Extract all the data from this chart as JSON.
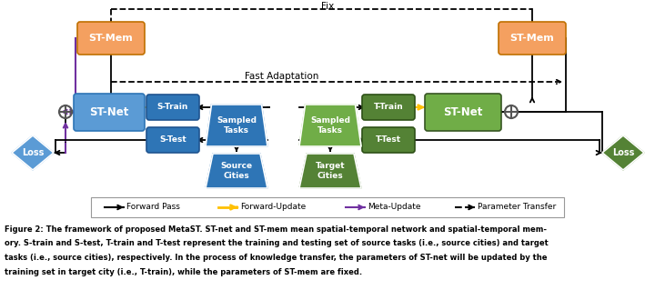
{
  "fig_width": 7.2,
  "fig_height": 3.19,
  "dpi": 100,
  "bg_color": "#ffffff",
  "orange_color": "#F4A060",
  "blue_net_color": "#5B9BD5",
  "blue_dark_color": "#2E75B6",
  "blue_box_color": "#4472C4",
  "green_net_color": "#70AD47",
  "green_box_color": "#548235",
  "green_dark_color": "#375623",
  "purple_color": "#7030A0",
  "orange_arrow_color": "#FFC000",
  "gray_color": "#7F7F7F",
  "caption_lines": [
    "Figure 2: The framework of proposed MetaST. ST-net and ST-mem mean spatial-temporal network and spatial-temporal mem-",
    "ory. S-train and S-test, T-train and T-test represent the training and testing set of source tasks (i.e., source cities) and target",
    "tasks (i.e., source cities), respectively. In the process of knowledge transfer, the parameters of ST-net will be updated by the",
    "training set in target city (i.e., T-train), while the parameters of ST-mem are fixed."
  ]
}
